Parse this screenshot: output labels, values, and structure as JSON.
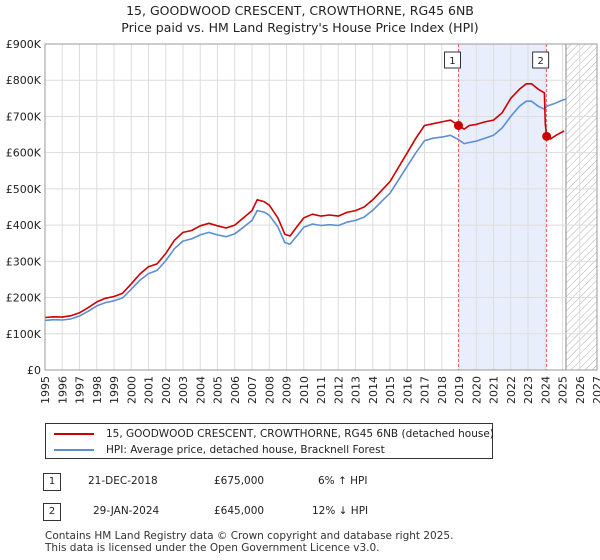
{
  "header": {
    "title_line1": "15, GOODWOOD CRESCENT, CROWTHORNE, RG45 6NB",
    "title_line2": "Price paid vs. HM Land Registry's House Price Index (HPI)"
  },
  "chart_data": {
    "type": "line",
    "xlim": [
      1995,
      2027
    ],
    "ylim": [
      0,
      900000
    ],
    "x_ticks": [
      "1995",
      "1996",
      "1997",
      "1998",
      "1999",
      "2000",
      "2001",
      "2002",
      "2003",
      "2004",
      "2005",
      "2006",
      "2007",
      "2008",
      "2009",
      "2010",
      "2011",
      "2012",
      "2013",
      "2014",
      "2015",
      "2016",
      "2017",
      "2018",
      "2019",
      "2020",
      "2021",
      "2022",
      "2023",
      "2024",
      "2025",
      "2026",
      "2027"
    ],
    "y_ticks": [
      {
        "value": 0,
        "label": "£0"
      },
      {
        "value": 100000,
        "label": "£100K"
      },
      {
        "value": 200000,
        "label": "£200K"
      },
      {
        "value": 300000,
        "label": "£300K"
      },
      {
        "value": 400000,
        "label": "£400K"
      },
      {
        "value": 500000,
        "label": "£500K"
      },
      {
        "value": 600000,
        "label": "£600K"
      },
      {
        "value": 700000,
        "label": "£700K"
      },
      {
        "value": 800000,
        "label": "£800K"
      },
      {
        "value": 900000,
        "label": "£900K"
      }
    ],
    "shaded_period": {
      "start": 2018.97,
      "end": 2024.08,
      "color": "#e8eefb"
    },
    "forecast_hatch_start": 2025.2,
    "series": [
      {
        "name": "15, GOODWOOD CRESCENT, CROWTHORNE, RG45 6NB (detached house)",
        "color": "#cc0000",
        "points": [
          [
            1995.0,
            145000
          ],
          [
            1995.5,
            147000
          ],
          [
            1996.0,
            146000
          ],
          [
            1996.5,
            150000
          ],
          [
            1997.0,
            158000
          ],
          [
            1997.5,
            172000
          ],
          [
            1998.0,
            188000
          ],
          [
            1998.5,
            198000
          ],
          [
            1999.0,
            203000
          ],
          [
            1999.5,
            212000
          ],
          [
            2000.0,
            238000
          ],
          [
            2000.5,
            265000
          ],
          [
            2001.0,
            285000
          ],
          [
            2001.5,
            293000
          ],
          [
            2002.0,
            322000
          ],
          [
            2002.5,
            358000
          ],
          [
            2003.0,
            380000
          ],
          [
            2003.5,
            385000
          ],
          [
            2004.0,
            398000
          ],
          [
            2004.5,
            405000
          ],
          [
            2005.0,
            398000
          ],
          [
            2005.5,
            392000
          ],
          [
            2006.0,
            400000
          ],
          [
            2006.5,
            420000
          ],
          [
            2007.0,
            440000
          ],
          [
            2007.3,
            470000
          ],
          [
            2007.7,
            465000
          ],
          [
            2008.0,
            455000
          ],
          [
            2008.5,
            420000
          ],
          [
            2008.9,
            375000
          ],
          [
            2009.2,
            370000
          ],
          [
            2009.6,
            395000
          ],
          [
            2010.0,
            420000
          ],
          [
            2010.5,
            430000
          ],
          [
            2011.0,
            425000
          ],
          [
            2011.5,
            428000
          ],
          [
            2012.0,
            425000
          ],
          [
            2012.5,
            435000
          ],
          [
            2013.0,
            440000
          ],
          [
            2013.5,
            450000
          ],
          [
            2014.0,
            470000
          ],
          [
            2014.5,
            495000
          ],
          [
            2015.0,
            520000
          ],
          [
            2015.5,
            560000
          ],
          [
            2016.0,
            600000
          ],
          [
            2016.5,
            640000
          ],
          [
            2017.0,
            675000
          ],
          [
            2017.5,
            680000
          ],
          [
            2018.0,
            685000
          ],
          [
            2018.5,
            690000
          ],
          [
            2018.97,
            675000
          ],
          [
            2019.3,
            665000
          ],
          [
            2019.6,
            675000
          ],
          [
            2020.0,
            678000
          ],
          [
            2020.5,
            685000
          ],
          [
            2021.0,
            690000
          ],
          [
            2021.5,
            710000
          ],
          [
            2022.0,
            750000
          ],
          [
            2022.5,
            775000
          ],
          [
            2022.9,
            790000
          ],
          [
            2023.2,
            790000
          ],
          [
            2023.6,
            775000
          ],
          [
            2023.95,
            765000
          ],
          [
            2024.0,
            680000
          ],
          [
            2024.08,
            645000
          ],
          [
            2024.3,
            638000
          ],
          [
            2024.7,
            650000
          ],
          [
            2025.1,
            660000
          ]
        ]
      },
      {
        "name": "HPI: Average price, detached house, Bracknell Forest",
        "color": "#5b8fd3",
        "points": [
          [
            1995.0,
            137000
          ],
          [
            1995.5,
            139000
          ],
          [
            1996.0,
            138000
          ],
          [
            1996.5,
            141000
          ],
          [
            1997.0,
            149000
          ],
          [
            1997.5,
            162000
          ],
          [
            1998.0,
            177000
          ],
          [
            1998.5,
            186000
          ],
          [
            1999.0,
            191000
          ],
          [
            1999.5,
            199000
          ],
          [
            2000.0,
            223000
          ],
          [
            2000.5,
            248000
          ],
          [
            2001.0,
            266000
          ],
          [
            2001.5,
            275000
          ],
          [
            2002.0,
            302000
          ],
          [
            2002.5,
            335000
          ],
          [
            2003.0,
            356000
          ],
          [
            2003.5,
            362000
          ],
          [
            2004.0,
            373000
          ],
          [
            2004.5,
            380000
          ],
          [
            2005.0,
            373000
          ],
          [
            2005.5,
            368000
          ],
          [
            2006.0,
            376000
          ],
          [
            2006.5,
            394000
          ],
          [
            2007.0,
            413000
          ],
          [
            2007.3,
            440000
          ],
          [
            2007.7,
            436000
          ],
          [
            2008.0,
            427000
          ],
          [
            2008.5,
            395000
          ],
          [
            2008.9,
            352000
          ],
          [
            2009.2,
            347000
          ],
          [
            2009.6,
            370000
          ],
          [
            2010.0,
            394000
          ],
          [
            2010.5,
            403000
          ],
          [
            2011.0,
            399000
          ],
          [
            2011.5,
            401000
          ],
          [
            2012.0,
            399000
          ],
          [
            2012.5,
            408000
          ],
          [
            2013.0,
            413000
          ],
          [
            2013.5,
            422000
          ],
          [
            2014.0,
            441000
          ],
          [
            2014.5,
            465000
          ],
          [
            2015.0,
            488000
          ],
          [
            2015.5,
            525000
          ],
          [
            2016.0,
            563000
          ],
          [
            2016.5,
            600000
          ],
          [
            2017.0,
            633000
          ],
          [
            2017.5,
            640000
          ],
          [
            2018.0,
            643000
          ],
          [
            2018.5,
            648000
          ],
          [
            2018.97,
            636000
          ],
          [
            2019.3,
            625000
          ],
          [
            2019.6,
            628000
          ],
          [
            2020.0,
            632000
          ],
          [
            2020.5,
            640000
          ],
          [
            2021.0,
            648000
          ],
          [
            2021.5,
            668000
          ],
          [
            2022.0,
            700000
          ],
          [
            2022.5,
            728000
          ],
          [
            2022.9,
            742000
          ],
          [
            2023.2,
            742000
          ],
          [
            2023.6,
            728000
          ],
          [
            2023.95,
            720000
          ],
          [
            2024.08,
            728000
          ],
          [
            2024.5,
            735000
          ],
          [
            2025.0,
            745000
          ],
          [
            2025.2,
            748000
          ]
        ]
      }
    ],
    "markers": [
      {
        "label": "1",
        "x": 2018.97,
        "y": 675000
      },
      {
        "label": "2",
        "x": 2024.08,
        "y": 645000
      }
    ]
  },
  "legend": {
    "items": [
      {
        "label": "15, GOODWOOD CRESCENT, CROWTHORNE, RG45 6NB (detached house)",
        "color": "#cc0000"
      },
      {
        "label": "HPI: Average price, detached house, Bracknell Forest",
        "color": "#5b8fd3"
      }
    ]
  },
  "transactions": [
    {
      "num": "1",
      "date": "21-DEC-2018",
      "price": "£675,000",
      "hpi": "6% ↑ HPI"
    },
    {
      "num": "2",
      "date": "29-JAN-2024",
      "price": "£645,000",
      "hpi": "12% ↓ HPI"
    }
  ],
  "footer": {
    "line1": "Contains HM Land Registry data © Crown copyright and database right 2025.",
    "line2": "This data is licensed under the Open Government Licence v3.0."
  }
}
